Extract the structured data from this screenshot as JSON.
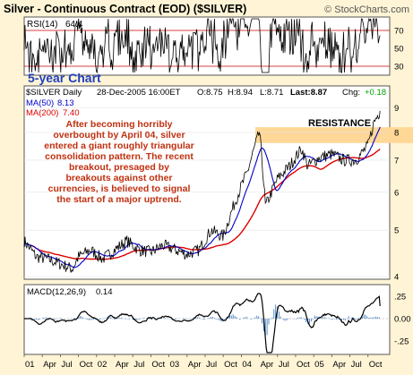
{
  "chart_data": {
    "type": "line",
    "title": "Silver - Continuous Contract (EOD) ($SILVER)",
    "watermark": "© StockCharts.com",
    "subtitle": "5-year Chart",
    "symbol_line": "$SILVER Daily",
    "quote": {
      "date": "28-Dec-2005 16:00ET",
      "open": "O:8.75",
      "high": "H:8.94",
      "low": "L:8.71",
      "last": "Last:8.87",
      "change_label": "Chg:",
      "change_value": "+0.18"
    },
    "annotation": "After becoming horribly overbought by April 04, silver entered a giant roughly triangular consolidation pattern. The recent breakout, presaged by breakouts against other currencies, is believed to signal the start of a major uptrend.",
    "resistance_label": "RESISTANCE",
    "resistance_range": [
      7.6,
      8.2
    ],
    "x_ticks": [
      "01",
      "Apr",
      "Jul",
      "Oct",
      "02",
      "Apr",
      "Jul",
      "Oct",
      "03",
      "Apr",
      "Jul",
      "Oct",
      "04",
      "Apr",
      "Jul",
      "Oct",
      "05",
      "Apr",
      "Jul",
      "Oct"
    ],
    "price_ticks": [
      4,
      5,
      6,
      7,
      8,
      9
    ],
    "price_range": [
      3.95,
      10.0
    ],
    "rsi": {
      "label": "RSI(14)",
      "value": "64.4",
      "ticks": [
        30,
        50,
        70
      ],
      "overbought": 70,
      "oversold": 30,
      "range": [
        20,
        85
      ]
    },
    "moving_averages": [
      {
        "name": "MA(50)",
        "value": "8.13",
        "color": "#0000cc"
      },
      {
        "name": "MA(200)",
        "value": "7.40",
        "color": "#dd0000"
      }
    ],
    "macd": {
      "label": "MACD(12,26,9)",
      "value": "0.14",
      "ticks": [
        ".25",
        "0.00",
        "-.25"
      ],
      "range": [
        -0.4,
        0.38
      ]
    },
    "series": [
      {
        "name": "$SILVER Daily",
        "x": [
          "2001-01",
          "2001-03",
          "2001-05",
          "2001-07",
          "2001-09",
          "2001-10",
          "2001-12",
          "2002-02",
          "2002-04",
          "2002-06",
          "2002-08",
          "2002-10",
          "2002-12",
          "2003-02",
          "2003-04",
          "2003-06",
          "2003-08",
          "2003-10",
          "2003-12",
          "2004-02",
          "2004-04",
          "2004-05",
          "2004-07",
          "2004-09",
          "2004-11",
          "2004-12",
          "2005-02",
          "2005-04",
          "2005-06",
          "2005-08",
          "2005-10",
          "2005-11",
          "2005-12"
        ],
        "values": [
          4.75,
          4.4,
          4.35,
          4.25,
          4.15,
          4.4,
          4.55,
          4.35,
          4.55,
          4.75,
          4.55,
          4.5,
          4.65,
          4.55,
          4.45,
          4.55,
          5.0,
          4.85,
          5.75,
          6.6,
          8.0,
          5.6,
          6.4,
          6.8,
          7.4,
          6.8,
          7.1,
          7.2,
          7.0,
          7.0,
          7.5,
          8.4,
          8.87
        ]
      }
    ]
  },
  "colors": {
    "frame_bg": "#fff5d6",
    "panel_border": "#555555",
    "price_line": "#000000",
    "resistance_band": "#ffd797",
    "annotation_text": "#c03010",
    "subtitle": "#2040c0",
    "change_positive": "#00a000",
    "ma50": "#0000cc",
    "ma200": "#dd0000"
  }
}
